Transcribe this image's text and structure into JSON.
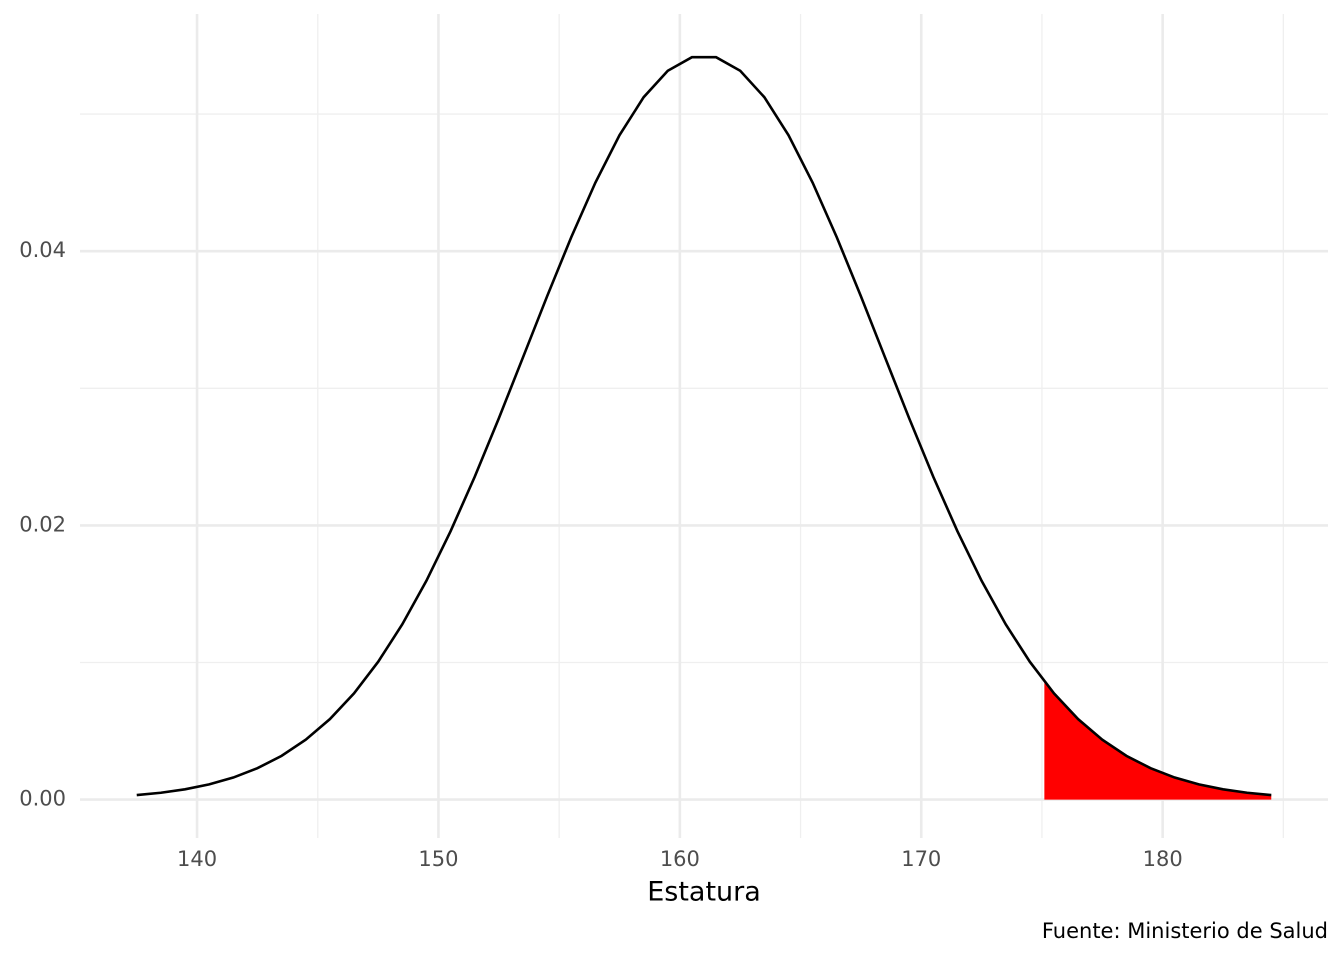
{
  "chart_data": {
    "type": "density",
    "x_label": "Estatura",
    "caption": "Fuente: Ministerio de Salud",
    "xlim": [
      135.15,
      186.85
    ],
    "ylim": [
      -0.0028,
      0.0573
    ],
    "xticks": [
      140,
      150,
      160,
      170,
      180
    ],
    "yticks": [
      {
        "value": 0,
        "label": "0.00"
      },
      {
        "value": 0.02,
        "label": "0.02"
      },
      {
        "value": 0.04,
        "label": "0.04"
      }
    ],
    "x_minor_grid": [
      145,
      155,
      165,
      175,
      185
    ],
    "y_minor_grid": [
      0.01,
      0.03,
      0.05
    ],
    "grid": true,
    "series": [
      {
        "kind": "area",
        "color": "#ff0000",
        "x": [
          175.1,
          175.5,
          176.5,
          177.5,
          178.5,
          179.5,
          180.5,
          181.5,
          182.5,
          183.5,
          184.5
        ],
        "values": [
          0.00862,
          0.00775,
          0.00587,
          0.00437,
          0.00319,
          0.00229,
          0.00161,
          0.00111,
          0.00075,
          0.0005,
          0.00033
        ]
      },
      {
        "kind": "line",
        "color": "#000000",
        "x": [
          137.5,
          138.5,
          139.5,
          140.5,
          141.5,
          142.5,
          143.5,
          144.5,
          145.5,
          146.5,
          147.5,
          148.5,
          149.5,
          150.5,
          151.5,
          152.5,
          153.5,
          154.5,
          155.5,
          156.5,
          157.5,
          158.5,
          159.5,
          160.5,
          161.5,
          162.5,
          163.5,
          164.5,
          165.5,
          166.5,
          167.5,
          168.5,
          169.5,
          170.5,
          171.5,
          172.5,
          173.5,
          174.5,
          175.5,
          176.5,
          177.5,
          178.5,
          179.5,
          180.5,
          181.5,
          182.5,
          183.5,
          184.5
        ],
        "values": [
          0.00033,
          0.0005,
          0.00075,
          0.00111,
          0.00161,
          0.00229,
          0.00319,
          0.00437,
          0.00587,
          0.00775,
          0.01005,
          0.01278,
          0.01596,
          0.01957,
          0.02354,
          0.02781,
          0.03225,
          0.03671,
          0.04102,
          0.045,
          0.04846,
          0.05123,
          0.05316,
          0.05415,
          0.05415,
          0.05316,
          0.05123,
          0.04846,
          0.045,
          0.04102,
          0.03671,
          0.03225,
          0.02781,
          0.02354,
          0.01957,
          0.01596,
          0.01278,
          0.01005,
          0.00775,
          0.00587,
          0.00437,
          0.00319,
          0.00229,
          0.00161,
          0.00111,
          0.00075,
          0.0005,
          0.00033
        ]
      }
    ]
  }
}
